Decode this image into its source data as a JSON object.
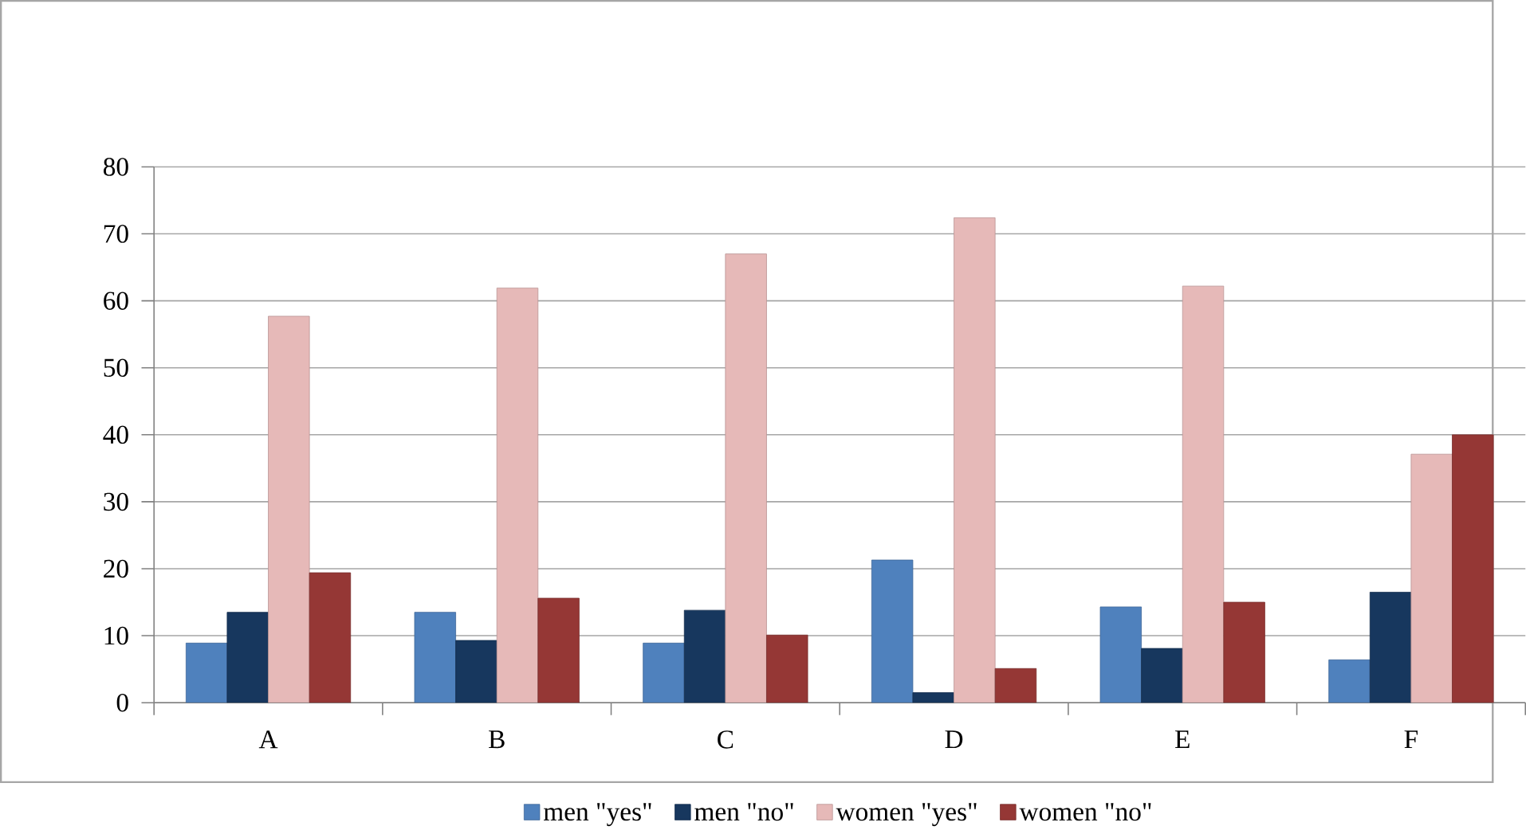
{
  "chart_data": {
    "type": "bar",
    "categories": [
      "A",
      "B",
      "C",
      "D",
      "E",
      "F"
    ],
    "series": [
      {
        "name": "men \"yes\"",
        "color": "#4f81bd",
        "values": [
          8.9,
          13.5,
          8.9,
          21.3,
          14.3,
          6.4
        ]
      },
      {
        "name": "men \"no\"",
        "color": "#17375e",
        "values": [
          13.5,
          9.3,
          13.8,
          1.5,
          8.1,
          16.5
        ]
      },
      {
        "name": "women \"yes\"",
        "color": "#e6b9b8",
        "values": [
          57.7,
          61.9,
          67.0,
          72.4,
          62.2,
          37.1
        ]
      },
      {
        "name": "women \"no\"",
        "color": "#953735",
        "values": [
          19.4,
          15.6,
          10.1,
          5.1,
          15.0,
          40.0
        ]
      }
    ],
    "ylim": [
      0,
      80
    ],
    "yticks": [
      0,
      10,
      20,
      30,
      40,
      50,
      60,
      70,
      80
    ],
    "grid": "y",
    "legend": "bottom"
  }
}
